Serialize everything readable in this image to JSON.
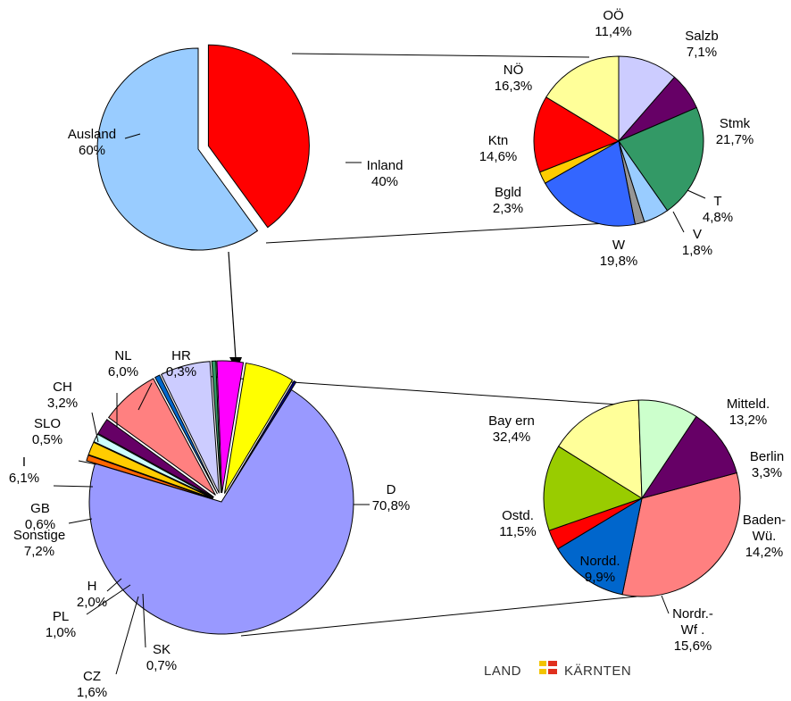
{
  "colors": {
    "stroke": "#000000",
    "logo_yellow": "#f2c400",
    "logo_red": "#e0301e"
  },
  "logo": {
    "left": "LAND",
    "right": "KÄRNTEN"
  },
  "chart_data": [
    {
      "type": "pie",
      "title": "",
      "slices": [
        {
          "label": "Ausland",
          "value_text": "60%",
          "value": 60,
          "color": "#99ccff"
        },
        {
          "label": "Inland",
          "value_text": "40%",
          "value": 40,
          "color": "#ff0000"
        }
      ]
    },
    {
      "type": "pie",
      "title": "",
      "slices": [
        {
          "label": "OÖ",
          "value_text": "11,4%",
          "value": 11.4,
          "color": "#ccccff"
        },
        {
          "label": "Salzb",
          "value_text": "7,1%",
          "value": 7.1,
          "color": "#660066"
        },
        {
          "label": "Stmk",
          "value_text": "21,7%",
          "value": 21.7,
          "color": "#339966"
        },
        {
          "label": "T",
          "value_text": "4,8%",
          "value": 4.8,
          "color": "#99ccff"
        },
        {
          "label": "V",
          "value_text": "1,8%",
          "value": 1.8,
          "color": "#969696"
        },
        {
          "label": "W",
          "value_text": "19,8%",
          "value": 19.8,
          "color": "#3366ff"
        },
        {
          "label": "Bgld",
          "value_text": "2,3%",
          "value": 2.3,
          "color": "#ffcc00"
        },
        {
          "label": "Ktn",
          "value_text": "14,6%",
          "value": 14.6,
          "color": "#ff0000"
        },
        {
          "label": "NÖ",
          "value_text": "16,3%",
          "value": 16.3,
          "color": "#ffff99"
        }
      ]
    },
    {
      "type": "pie",
      "title": "",
      "slices": [
        {
          "label": "D",
          "value_text": "70,8%",
          "value": 70.8,
          "color": "#9999ff"
        },
        {
          "label": "SK",
          "value_text": "0,7%",
          "value": 0.7,
          "color": "#ff6600"
        },
        {
          "label": "CZ",
          "value_text": "1,6%",
          "value": 1.6,
          "color": "#ffcc00"
        },
        {
          "label": "PL",
          "value_text": "1,0%",
          "value": 1.0,
          "color": "#ccffff"
        },
        {
          "label": "H",
          "value_text": "2,0%",
          "value": 2.0,
          "color": "#660066"
        },
        {
          "label": "Sonstige",
          "value_text": "7,2%",
          "value": 7.2,
          "color": "#ff8080"
        },
        {
          "label": "GB",
          "value_text": "0,6%",
          "value": 0.6,
          "color": "#0066cc"
        },
        {
          "label": "I",
          "value_text": "6,1%",
          "value": 6.1,
          "color": "#ccccff"
        },
        {
          "label": "SLO",
          "value_text": "0,5%",
          "value": 0.5,
          "color": "#339966"
        },
        {
          "label": "CH",
          "value_text": "3,2%",
          "value": 3.2,
          "color": "#ff00ff"
        },
        {
          "label": "NL",
          "value_text": "6,0%",
          "value": 6.0,
          "color": "#ffff00"
        },
        {
          "label": "HR",
          "value_text": "0,3%",
          "value": 0.3,
          "color": "#000080"
        }
      ]
    },
    {
      "type": "pie",
      "title": "",
      "slices": [
        {
          "label": "Bay ern",
          "value_text": "32,4%",
          "value": 32.4,
          "color": "#ff8080"
        },
        {
          "label": "Mitteld.",
          "value_text": "13,2%",
          "value": 13.2,
          "color": "#0066cc"
        },
        {
          "label": "Berlin",
          "value_text": "3,3%",
          "value": 3.3,
          "color": "#ff0000"
        },
        {
          "label": "Baden-\nWü.",
          "value_text": "14,2%",
          "value": 14.2,
          "color": "#99cc00"
        },
        {
          "label": "Nordr.-\nWf .",
          "value_text": "15,6%",
          "value": 15.6,
          "color": "#ffff99"
        },
        {
          "label": "Nordd.",
          "value_text": "9,9%",
          "value": 9.9,
          "color": "#ccffcc"
        },
        {
          "label": "Ostd.",
          "value_text": "11,5%",
          "value": 11.5,
          "color": "#660066"
        }
      ]
    }
  ]
}
